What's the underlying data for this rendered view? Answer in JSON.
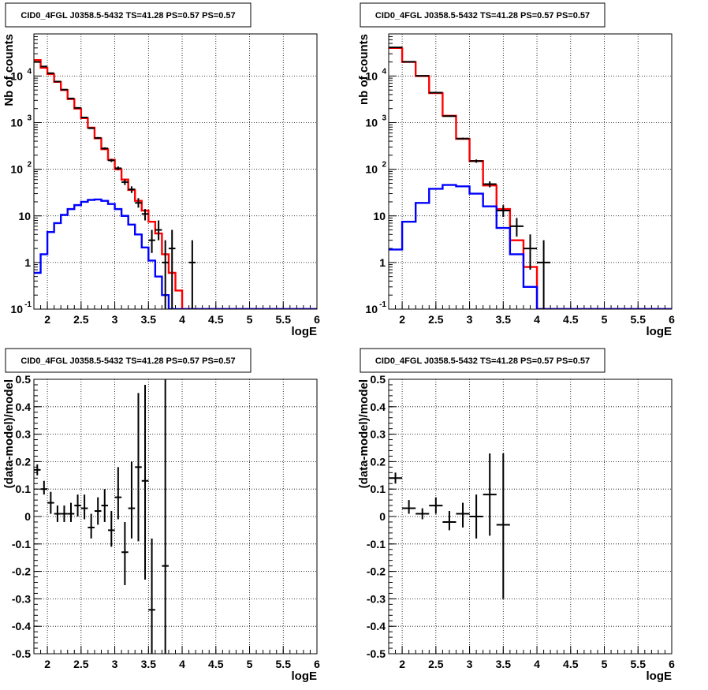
{
  "chart_data": [
    {
      "type": "line",
      "title": "CID0_4FGL J0358.5-5432 TS=41.28 PS=0.57 PS=0.57",
      "xlabel": "logE",
      "ylabel": "Nb of counts",
      "yscale": "log",
      "xlim": [
        1.8,
        6.0
      ],
      "ylim": [
        0.1,
        80000
      ],
      "grid": true,
      "xticks": [
        "2",
        "2.5",
        "3",
        "3.5",
        "4",
        "4.5",
        "5",
        "5.5",
        "6"
      ],
      "yticks": [
        "10^-1",
        "1",
        "10",
        "10^2",
        "10^3",
        "10^4"
      ],
      "bin_edges": [
        1.8,
        1.9,
        2.0,
        2.1,
        2.2,
        2.3,
        2.4,
        2.5,
        2.6,
        2.7,
        2.8,
        2.9,
        3.0,
        3.1,
        3.2,
        3.3,
        3.4,
        3.5,
        3.6,
        3.7,
        3.8,
        3.9,
        4.0,
        4.1,
        4.2,
        4.3,
        4.4,
        4.5,
        4.6,
        4.7,
        4.8,
        4.9,
        5.0,
        5.1,
        5.2,
        5.3,
        5.4,
        5.5,
        5.6,
        5.7,
        5.8,
        5.9,
        6.0
      ],
      "series": [
        {
          "color": "#ff0000",
          "style": "step",
          "values": [
            22000,
            15000,
            11000,
            7500,
            5000,
            3200,
            2000,
            1250,
            780,
            460,
            270,
            160,
            100,
            60,
            36,
            21,
            13,
            7.5,
            4.2,
            1.5,
            0.6,
            0.25,
            0.1,
            0.1,
            0.1,
            0.1,
            0.1,
            0.1,
            0.1,
            0.1,
            0.1,
            0.1,
            0.1,
            0.1,
            0.1,
            0.1,
            0.1,
            0.1,
            0.1,
            0.1,
            0.1,
            0.1
          ]
        },
        {
          "color": "#0000ff",
          "style": "step",
          "values": [
            0.6,
            1.5,
            4.5,
            7,
            10.5,
            14,
            17,
            20,
            22,
            22.5,
            21,
            18,
            14,
            10,
            6.5,
            4,
            2.1,
            1.1,
            0.5,
            0.2,
            0.1,
            0.1,
            0.1,
            0.1,
            0.1,
            0.1,
            0.1,
            0.1,
            0.1,
            0.1,
            0.1,
            0.1,
            0.1,
            0.1,
            0.1,
            0.1,
            0.1,
            0.1,
            0.1,
            0.1,
            0.1,
            0.1
          ]
        }
      ],
      "points": [
        {
          "x": 1.85,
          "y": 20000,
          "ylo": 19800,
          "yhi": 20200
        },
        {
          "x": 1.95,
          "y": 16000,
          "ylo": 15800,
          "yhi": 16200
        },
        {
          "x": 2.05,
          "y": 11500,
          "ylo": 11300,
          "yhi": 11700
        },
        {
          "x": 2.15,
          "y": 7600,
          "ylo": 7450,
          "yhi": 7750
        },
        {
          "x": 2.25,
          "y": 5100,
          "ylo": 4980,
          "yhi": 5220
        },
        {
          "x": 2.35,
          "y": 3300,
          "ylo": 3200,
          "yhi": 3400
        },
        {
          "x": 2.45,
          "y": 2070,
          "ylo": 2000,
          "yhi": 2140
        },
        {
          "x": 2.55,
          "y": 1290,
          "ylo": 1240,
          "yhi": 1340
        },
        {
          "x": 2.65,
          "y": 760,
          "ylo": 730,
          "yhi": 790
        },
        {
          "x": 2.75,
          "y": 470,
          "ylo": 450,
          "yhi": 490
        },
        {
          "x": 2.85,
          "y": 280,
          "ylo": 265,
          "yhi": 295
        },
        {
          "x": 2.95,
          "y": 155,
          "ylo": 143,
          "yhi": 167
        },
        {
          "x": 3.05,
          "y": 105,
          "ylo": 95,
          "yhi": 115
        },
        {
          "x": 3.15,
          "y": 53,
          "ylo": 46,
          "yhi": 60
        },
        {
          "x": 3.25,
          "y": 37,
          "ylo": 31,
          "yhi": 43
        },
        {
          "x": 3.35,
          "y": 19,
          "ylo": 15,
          "yhi": 24
        },
        {
          "x": 3.45,
          "y": 11,
          "ylo": 8,
          "yhi": 14
        },
        {
          "x": 3.55,
          "y": 3,
          "ylo": 1.6,
          "yhi": 5
        },
        {
          "x": 3.65,
          "y": 5,
          "ylo": 3,
          "yhi": 8
        },
        {
          "x": 3.75,
          "y": 1,
          "ylo": 0.1,
          "yhi": 3
        },
        {
          "x": 3.85,
          "y": 2,
          "ylo": 0.1,
          "yhi": 5
        },
        {
          "x": 4.15,
          "y": 1,
          "ylo": 0.1,
          "yhi": 3
        }
      ]
    },
    {
      "type": "line",
      "title": "CID0_4FGL J0358.5-5432 TS=41.28 PS=0.57 PS=0.57",
      "xlabel": "logE",
      "ylabel": "nb of counts",
      "yscale": "log",
      "xlim": [
        1.8,
        6.0
      ],
      "ylim": [
        0.1,
        80000
      ],
      "grid": true,
      "xticks": [
        "2",
        "2.5",
        "3",
        "3.5",
        "4",
        "4.5",
        "5",
        "5.5",
        "6"
      ],
      "yticks": [
        "10^-1",
        "1",
        "10",
        "10^2",
        "10^3",
        "10^4"
      ],
      "bin_edges": [
        1.8,
        2.0,
        2.2,
        2.4,
        2.6,
        2.8,
        3.0,
        3.2,
        3.4,
        3.6,
        3.8,
        4.0,
        4.2,
        4.4,
        4.6,
        4.8,
        5.0,
        5.2,
        5.4,
        5.6,
        5.8,
        6.0
      ],
      "series": [
        {
          "color": "#ff0000",
          "style": "step",
          "values": [
            40000,
            20000,
            10000,
            4300,
            1400,
            450,
            150,
            45,
            14,
            3,
            0.8,
            0.1,
            0.1,
            0.1,
            0.1,
            0.1,
            0.1,
            0.1,
            0.1,
            0.1,
            0.1
          ]
        },
        {
          "color": "#0000ff",
          "style": "step",
          "values": [
            1.9,
            7.5,
            19,
            38,
            46,
            43,
            30,
            16,
            5.5,
            1.5,
            0.3,
            0.1,
            0.1,
            0.1,
            0.1,
            0.1,
            0.1,
            0.1,
            0.1,
            0.1,
            0.1
          ]
        }
      ],
      "points": [
        {
          "x": 1.9,
          "y": 41000,
          "ylo": 40500,
          "yhi": 41500
        },
        {
          "x": 2.1,
          "y": 20200,
          "ylo": 20000,
          "yhi": 20400
        },
        {
          "x": 2.3,
          "y": 10100,
          "ylo": 9950,
          "yhi": 10250
        },
        {
          "x": 2.5,
          "y": 4400,
          "ylo": 4330,
          "yhi": 4470
        },
        {
          "x": 2.7,
          "y": 1380,
          "ylo": 1340,
          "yhi": 1420
        },
        {
          "x": 2.9,
          "y": 455,
          "ylo": 435,
          "yhi": 475
        },
        {
          "x": 3.1,
          "y": 150,
          "ylo": 138,
          "yhi": 162
        },
        {
          "x": 3.3,
          "y": 48,
          "ylo": 41,
          "yhi": 55
        },
        {
          "x": 3.5,
          "y": 13,
          "ylo": 9.5,
          "yhi": 17
        },
        {
          "x": 3.7,
          "y": 6,
          "ylo": 3.6,
          "yhi": 9
        },
        {
          "x": 3.9,
          "y": 2,
          "ylo": 0.7,
          "yhi": 4
        },
        {
          "x": 4.1,
          "y": 1,
          "ylo": 0.1,
          "yhi": 3
        }
      ]
    },
    {
      "type": "scatter",
      "title": "CID0_4FGL J0358.5-5432 TS=41.28 PS=0.57 PS=0.57",
      "xlabel": "logE",
      "ylabel": "(data-model)/model",
      "yscale": "linear",
      "xlim": [
        1.8,
        6.0
      ],
      "ylim": [
        -0.5,
        0.5
      ],
      "grid": true,
      "xticks": [
        "2",
        "2.5",
        "3",
        "3.5",
        "4",
        "4.5",
        "5",
        "5.5",
        "6"
      ],
      "yticks": [
        "-0.5",
        "-0.4",
        "-0.3",
        "-0.2",
        "-0.1",
        "0",
        "0.1",
        "0.2",
        "0.3",
        "0.4",
        "0.5"
      ],
      "xhalf": 0.05,
      "points": [
        {
          "x": 1.85,
          "y": 0.17,
          "ylo": 0.15,
          "yhi": 0.19
        },
        {
          "x": 1.95,
          "y": 0.1,
          "ylo": 0.08,
          "yhi": 0.13
        },
        {
          "x": 2.05,
          "y": 0.05,
          "ylo": 0.01,
          "yhi": 0.09
        },
        {
          "x": 2.15,
          "y": 0.01,
          "ylo": -0.02,
          "yhi": 0.04
        },
        {
          "x": 2.25,
          "y": 0.01,
          "ylo": -0.02,
          "yhi": 0.04
        },
        {
          "x": 2.35,
          "y": 0.01,
          "ylo": -0.02,
          "yhi": 0.05
        },
        {
          "x": 2.45,
          "y": 0.04,
          "ylo": 0.0,
          "yhi": 0.08
        },
        {
          "x": 2.55,
          "y": 0.03,
          "ylo": -0.01,
          "yhi": 0.08
        },
        {
          "x": 2.65,
          "y": -0.04,
          "ylo": -0.08,
          "yhi": 0.01
        },
        {
          "x": 2.75,
          "y": 0.02,
          "ylo": -0.03,
          "yhi": 0.07
        },
        {
          "x": 2.85,
          "y": 0.04,
          "ylo": -0.02,
          "yhi": 0.1
        },
        {
          "x": 2.95,
          "y": -0.05,
          "ylo": -0.11,
          "yhi": 0.02
        },
        {
          "x": 3.05,
          "y": 0.07,
          "ylo": -0.01,
          "yhi": 0.18
        },
        {
          "x": 3.15,
          "y": -0.13,
          "ylo": -0.25,
          "yhi": -0.02
        },
        {
          "x": 3.25,
          "y": 0.03,
          "ylo": -0.08,
          "yhi": 0.2
        },
        {
          "x": 3.35,
          "y": 0.18,
          "ylo": -0.09,
          "yhi": 0.45
        },
        {
          "x": 3.45,
          "y": 0.13,
          "ylo": -0.23,
          "yhi": 0.48
        },
        {
          "x": 3.55,
          "y": -0.34,
          "ylo": -0.5,
          "yhi": -0.08
        },
        {
          "x": 3.75,
          "y": -0.18,
          "ylo": -0.5,
          "yhi": 0.5
        }
      ]
    },
    {
      "type": "scatter",
      "title": "CID0_4FGL J0358.5-5432 TS=41.28 PS=0.57 PS=0.57",
      "xlabel": "logE",
      "ylabel": "(data-model)/model",
      "yscale": "linear",
      "xlim": [
        1.8,
        6.0
      ],
      "ylim": [
        -0.5,
        0.5
      ],
      "grid": true,
      "xticks": [
        "2",
        "2.5",
        "3",
        "3.5",
        "4",
        "4.5",
        "5",
        "5.5",
        "6"
      ],
      "yticks": [
        "-0.5",
        "-0.4",
        "-0.3",
        "-0.2",
        "-0.1",
        "0",
        "0.1",
        "0.2",
        "0.3",
        "0.4",
        "0.5"
      ],
      "xhalf": 0.1,
      "points": [
        {
          "x": 1.9,
          "y": 0.14,
          "ylo": 0.12,
          "yhi": 0.16
        },
        {
          "x": 2.1,
          "y": 0.03,
          "ylo": 0.01,
          "yhi": 0.06
        },
        {
          "x": 2.3,
          "y": 0.01,
          "ylo": -0.01,
          "yhi": 0.03
        },
        {
          "x": 2.5,
          "y": 0.04,
          "ylo": 0.01,
          "yhi": 0.07
        },
        {
          "x": 2.7,
          "y": -0.02,
          "ylo": -0.05,
          "yhi": 0.02
        },
        {
          "x": 2.9,
          "y": 0.01,
          "ylo": -0.04,
          "yhi": 0.05
        },
        {
          "x": 3.1,
          "y": 0.0,
          "ylo": -0.08,
          "yhi": 0.08
        },
        {
          "x": 3.3,
          "y": 0.08,
          "ylo": -0.07,
          "yhi": 0.23
        },
        {
          "x": 3.5,
          "y": -0.03,
          "ylo": -0.3,
          "yhi": 0.23
        }
      ]
    }
  ]
}
